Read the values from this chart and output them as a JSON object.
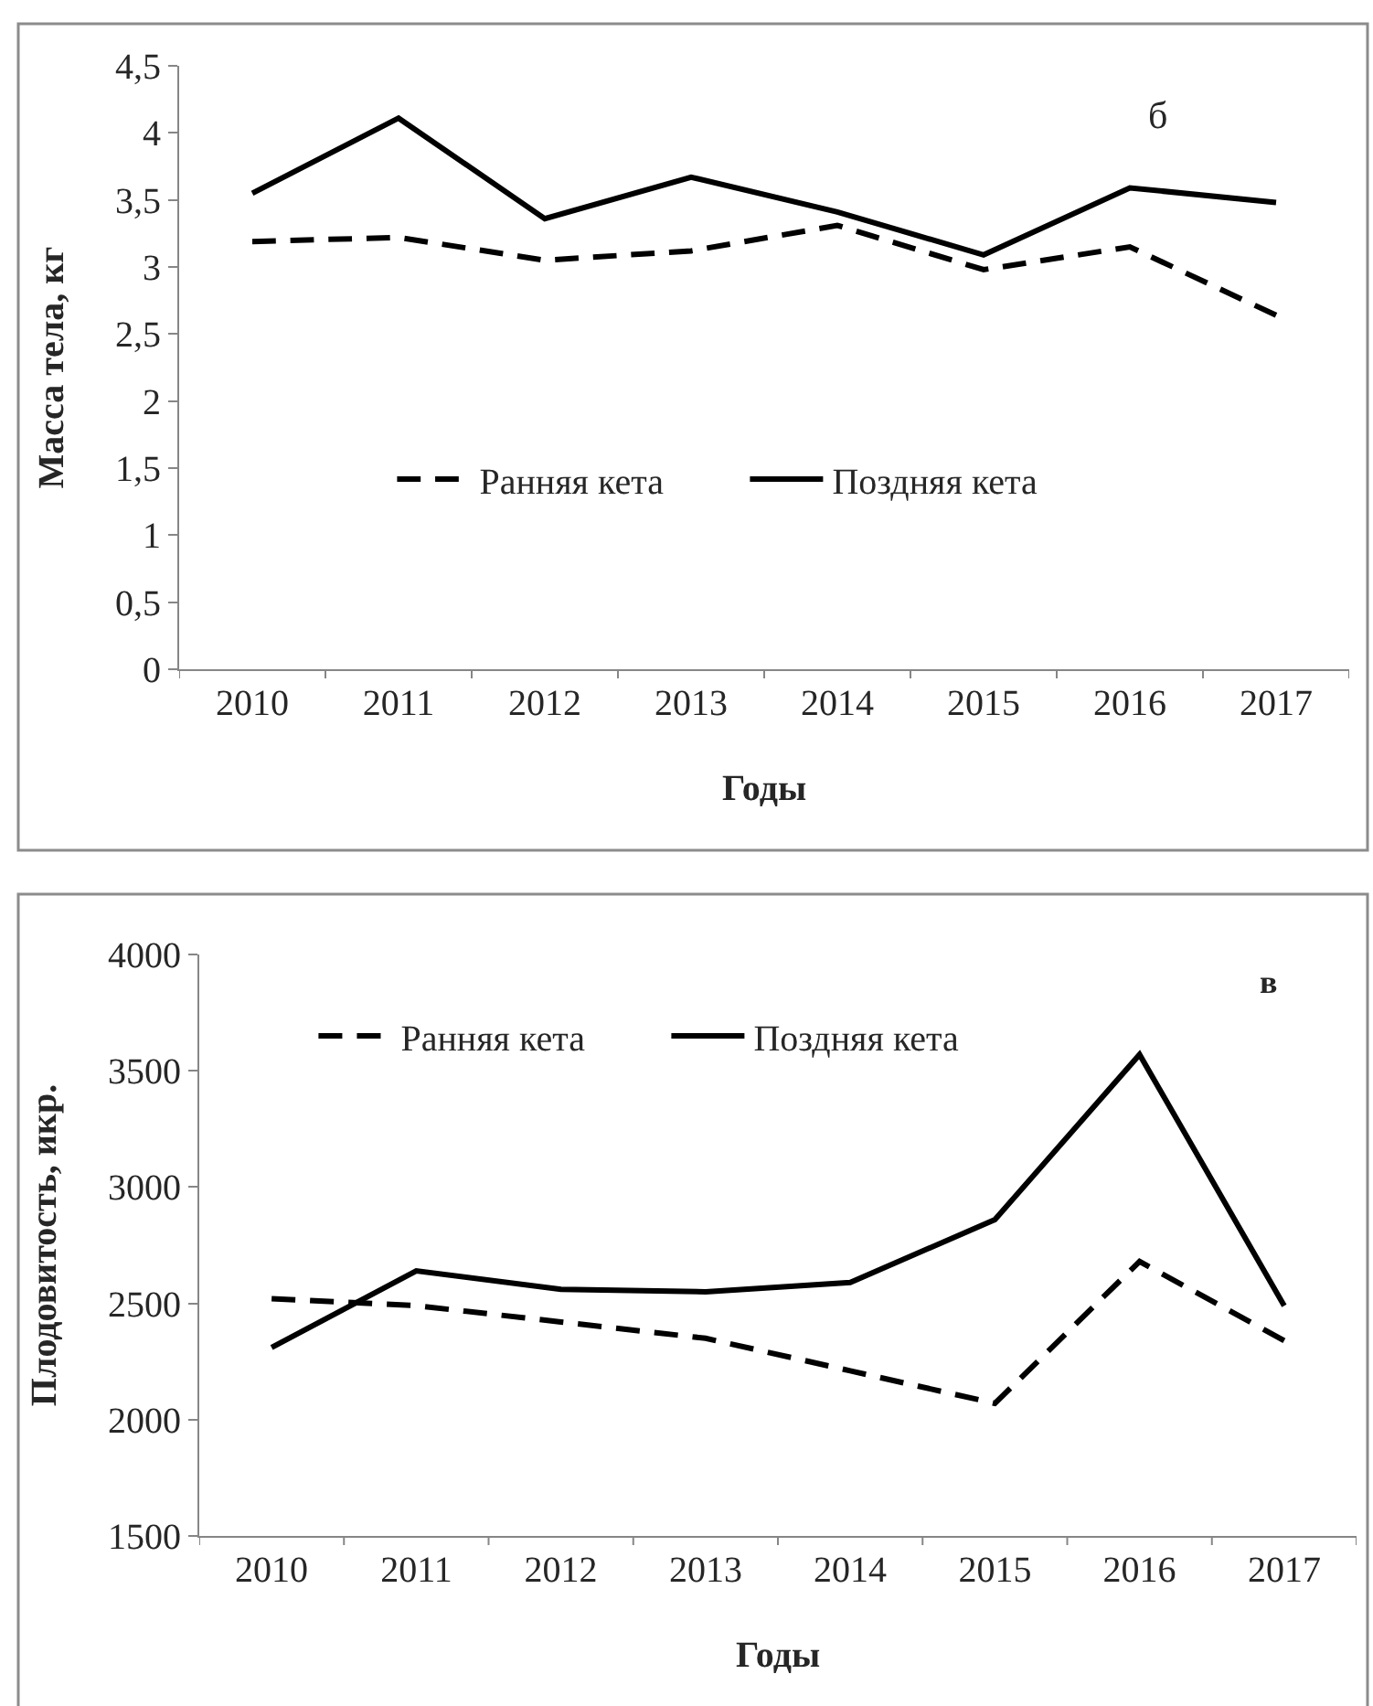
{
  "chart_data": [
    {
      "type": "line",
      "xlabel": "Годы",
      "ylabel": "Масса тела, кг",
      "annotations": [
        "б"
      ],
      "categories": [
        "2010",
        "2011",
        "2012",
        "2013",
        "2014",
        "2015",
        "2016",
        "2017"
      ],
      "series": [
        {
          "name": "Ранняя кета",
          "color": "#000000",
          "line_style": "dashed",
          "values": [
            3.19,
            3.22,
            3.05,
            3.12,
            3.31,
            2.98,
            3.15,
            2.64
          ]
        },
        {
          "name": "Поздняя кета",
          "color": "#000000",
          "line_style": "solid",
          "values": [
            3.55,
            4.11,
            3.36,
            3.67,
            3.41,
            3.09,
            3.59,
            3.48
          ]
        }
      ],
      "ylim": [
        0,
        4.5
      ],
      "yticks": [
        0,
        {
          "value": 0.5,
          "label": "0,5"
        },
        1,
        {
          "value": 1.5,
          "label": "1,5"
        },
        2,
        {
          "value": 2.5,
          "label": "2,5"
        },
        3,
        {
          "value": 3.5,
          "label": "3,5"
        },
        4,
        {
          "value": 4.5,
          "label": "4,5"
        }
      ],
      "legend": "bottom"
    },
    {
      "type": "line",
      "xlabel": "Годы",
      "ylabel": "Плодовитость, икр.",
      "annotations": [
        "в"
      ],
      "categories": [
        "2010",
        "2011",
        "2012",
        "2013",
        "2014",
        "2015",
        "2016",
        "2017"
      ],
      "series": [
        {
          "name": "Ранняя кета",
          "color": "#000000",
          "line_style": "dashed",
          "values": [
            2520,
            2490,
            2420,
            2350,
            2210,
            2070,
            2680,
            2340
          ]
        },
        {
          "name": "Поздняя кета",
          "color": "#000000",
          "line_style": "solid",
          "values": [
            2310,
            2640,
            2560,
            2550,
            2590,
            2860,
            3570,
            2490
          ]
        }
      ],
      "ylim": [
        1500,
        4000
      ],
      "yticks": [
        1500,
        2000,
        2500,
        3000,
        3500,
        4000
      ],
      "legend": "top"
    }
  ]
}
